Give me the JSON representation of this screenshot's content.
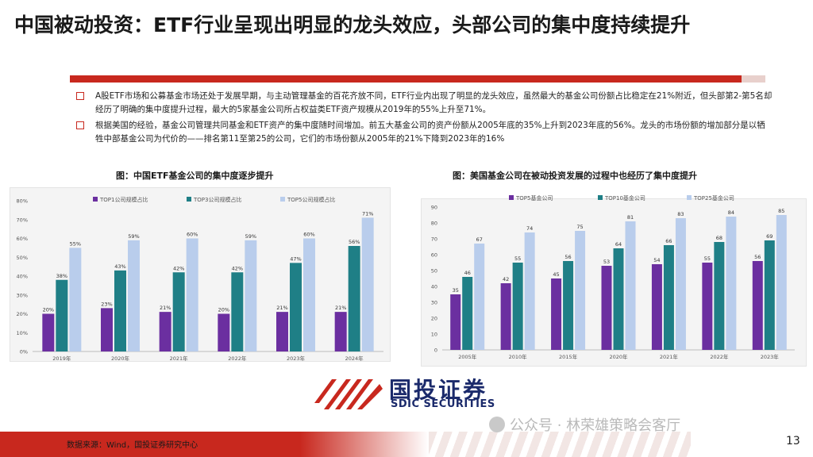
{
  "title": "中国被动投资：ETF行业呈现出明显的龙头效应，头部公司的集中度持续提升",
  "bullets": [
    "A股ETF市场和公募基金市场还处于发展早期，与主动管理基金的百花齐放不同，ETF行业内出现了明显的龙头效应，虽然最大的基金公司份额占比稳定在21%附近，但头部第2-第5名却经历了明确的集中度提升过程，最大的5家基金公司所占权益类ETF资产规模从2019年的55%上升至71%。",
    "根据美国的经验，基金公司管理共同基金和ETF资产的集中度随时间增加。前五大基金公司的资产份额从2005年底的35%上升到2023年底的56%。龙头的市场份额的增加部分是以牺牲中部基金公司为代价的——排名第11至第25的公司，它们的市场份额从2005年的21%下降到2023年的16%"
  ],
  "colors": {
    "accent": "#c8281e",
    "purple": "#6b2fa0",
    "teal": "#1f7f86",
    "light_blue": "#b9cdec",
    "navy": "#1b2a6b"
  },
  "chart_data": [
    {
      "type": "bar",
      "title": "图：中国ETF基金公司的集中度逐步提升",
      "categories": [
        "2019年",
        "2020年",
        "2021年",
        "2022年",
        "2023年",
        "2024年"
      ],
      "series": [
        {
          "name": "TOP1公司规模占比",
          "values": [
            20,
            23,
            21,
            20,
            21,
            21
          ],
          "labels": [
            "20%",
            "23%",
            "21%",
            "20%",
            "21%",
            "21%"
          ],
          "color": "#6b2fa0"
        },
        {
          "name": "TOP3公司规模占比",
          "values": [
            38,
            43,
            42,
            42,
            47,
            56
          ],
          "labels": [
            "38%",
            "43%",
            "42%",
            "42%",
            "47%",
            "56%"
          ],
          "color": "#1f7f86"
        },
        {
          "name": "TOP5公司规模占比",
          "values": [
            55,
            59,
            60,
            59,
            60,
            71
          ],
          "labels": [
            "55%",
            "59%",
            "60%",
            "59%",
            "60%",
            "71%"
          ],
          "color": "#b9cdec"
        }
      ],
      "y_ticks": [
        "0%",
        "10%",
        "20%",
        "30%",
        "40%",
        "50%",
        "60%",
        "70%",
        "80%"
      ],
      "ylim": [
        0,
        80
      ],
      "legend": "top",
      "grid": false
    },
    {
      "type": "bar",
      "title": "图：美国基金公司在被动投资发展的过程中也经历了集中度提升",
      "categories": [
        "2005年",
        "2010年",
        "2015年",
        "2020年",
        "2021年",
        "2022年",
        "2023年"
      ],
      "series": [
        {
          "name": "TOP5基金公司",
          "values": [
            35,
            42,
            45,
            53,
            54,
            55,
            56
          ],
          "labels": [
            "35",
            "42",
            "45",
            "53",
            "54",
            "55",
            "56"
          ],
          "color": "#6b2fa0"
        },
        {
          "name": "TOP10基金公司",
          "values": [
            46,
            55,
            56,
            64,
            66,
            68,
            69
          ],
          "labels": [
            "46",
            "55",
            "56",
            "64",
            "66",
            "68",
            "69"
          ],
          "color": "#1f7f86"
        },
        {
          "name": "TOP25基金公司",
          "values": [
            67,
            74,
            75,
            81,
            83,
            84,
            85
          ],
          "labels": [
            "67",
            "74",
            "75",
            "81",
            "83",
            "84",
            "85"
          ],
          "color": "#b9cdec"
        }
      ],
      "y_ticks": [
        "0",
        "10",
        "20",
        "30",
        "40",
        "50",
        "60",
        "70",
        "80",
        "90"
      ],
      "ylim": [
        0,
        90
      ],
      "legend": "top",
      "grid": false
    }
  ],
  "logo": {
    "name": "国投证券",
    "en": "SDIC SECURITIES"
  },
  "footer": {
    "source": "数据来源：Wind，国投证券研究中心",
    "watermark": "公众号 · 林荣雄策略会客厅",
    "page_number": "13"
  }
}
